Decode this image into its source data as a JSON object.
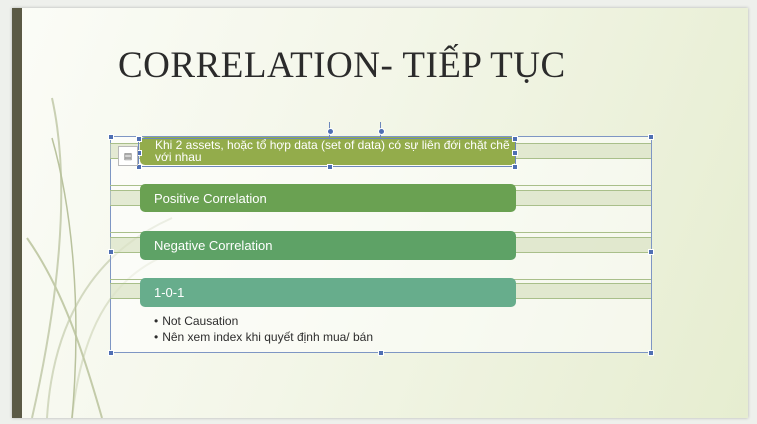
{
  "slide": {
    "title": "CORRELATION- TIẾP TỤC",
    "items": [
      {
        "label": "Khi 2 assets, hoặc tổ hợp data (set of data) có sự liên đới chặt chẽ với nhau"
      },
      {
        "label": "Positive Correlation"
      },
      {
        "label": "Negative Correlation"
      },
      {
        "label": "1-0-1"
      }
    ],
    "bullets": [
      "Not Causation",
      "Nên xem index khi quyết định mua/ bán"
    ],
    "layout_button_icon": "smartart-layout-icon"
  },
  "colors": {
    "leftbar": "#5b5a45",
    "bar1": "#93ac4b",
    "bar2": "#6aa152",
    "bar3": "#5ea266",
    "bar4": "#67ad8c",
    "selection": "#4f6fb3"
  }
}
